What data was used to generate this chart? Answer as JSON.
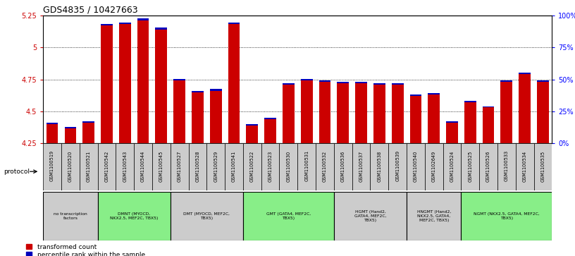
{
  "title": "GDS4835 / 10427663",
  "samples": [
    "GSM1100519",
    "GSM1100520",
    "GSM1100521",
    "GSM1100542",
    "GSM1100543",
    "GSM1100544",
    "GSM1100545",
    "GSM1100527",
    "GSM1100528",
    "GSM1100529",
    "GSM1100541",
    "GSM1100522",
    "GSM1100523",
    "GSM1100530",
    "GSM1100531",
    "GSM1100532",
    "GSM1100536",
    "GSM1100537",
    "GSM1100538",
    "GSM1100539",
    "GSM1100540",
    "GSM1102649",
    "GSM1100524",
    "GSM1100525",
    "GSM1100526",
    "GSM1100533",
    "GSM1100534",
    "GSM1100535"
  ],
  "red_values": [
    4.4,
    4.37,
    4.41,
    5.17,
    5.18,
    5.21,
    5.14,
    4.74,
    4.65,
    4.66,
    5.18,
    4.39,
    4.44,
    4.71,
    4.74,
    4.73,
    4.72,
    4.72,
    4.71,
    4.71,
    4.62,
    4.63,
    4.41,
    4.57,
    4.53,
    4.73,
    4.79,
    4.73
  ],
  "blue_values": [
    0.012,
    0.01,
    0.012,
    0.014,
    0.014,
    0.014,
    0.014,
    0.014,
    0.012,
    0.014,
    0.014,
    0.01,
    0.012,
    0.012,
    0.014,
    0.012,
    0.012,
    0.012,
    0.012,
    0.012,
    0.012,
    0.012,
    0.01,
    0.01,
    0.01,
    0.012,
    0.014,
    0.012
  ],
  "ylim_left": [
    4.25,
    5.25
  ],
  "ylim_right": [
    0,
    100
  ],
  "yticks_left": [
    4.25,
    4.5,
    4.75,
    5.0,
    5.25
  ],
  "ytick_labels_left": [
    "4.25",
    "4.5",
    "4.75",
    "5",
    "5.25"
  ],
  "yticks_right": [
    0,
    25,
    50,
    75,
    100
  ],
  "ytick_labels_right": [
    "0%",
    "25%",
    "50%",
    "75%",
    "100%"
  ],
  "red_color": "#CC0000",
  "blue_color": "#0000BB",
  "bar_width": 0.65,
  "groups": [
    {
      "label": "no transcription\nfactors",
      "start": 0,
      "end": 3,
      "color": "#CCCCCC"
    },
    {
      "label": "DMNT (MYOCD,\nNKX2.5, MEF2C, TBX5)",
      "start": 3,
      "end": 7,
      "color": "#88EE88"
    },
    {
      "label": "DMT (MYOCD, MEF2C,\nTBX5)",
      "start": 7,
      "end": 11,
      "color": "#CCCCCC"
    },
    {
      "label": "GMT (GATA4, MEF2C,\nTBX5)",
      "start": 11,
      "end": 16,
      "color": "#88EE88"
    },
    {
      "label": "HGMT (Hand2,\nGATA4, MEF2C,\nTBX5)",
      "start": 16,
      "end": 20,
      "color": "#CCCCCC"
    },
    {
      "label": "HNGMT (Hand2,\nNKX2.5, GATA4,\nMEF2C, TBX5)",
      "start": 20,
      "end": 23,
      "color": "#CCCCCC"
    },
    {
      "label": "NGMT (NKX2.5, GATA4, MEF2C,\nTBX5)",
      "start": 23,
      "end": 28,
      "color": "#88EE88"
    }
  ]
}
